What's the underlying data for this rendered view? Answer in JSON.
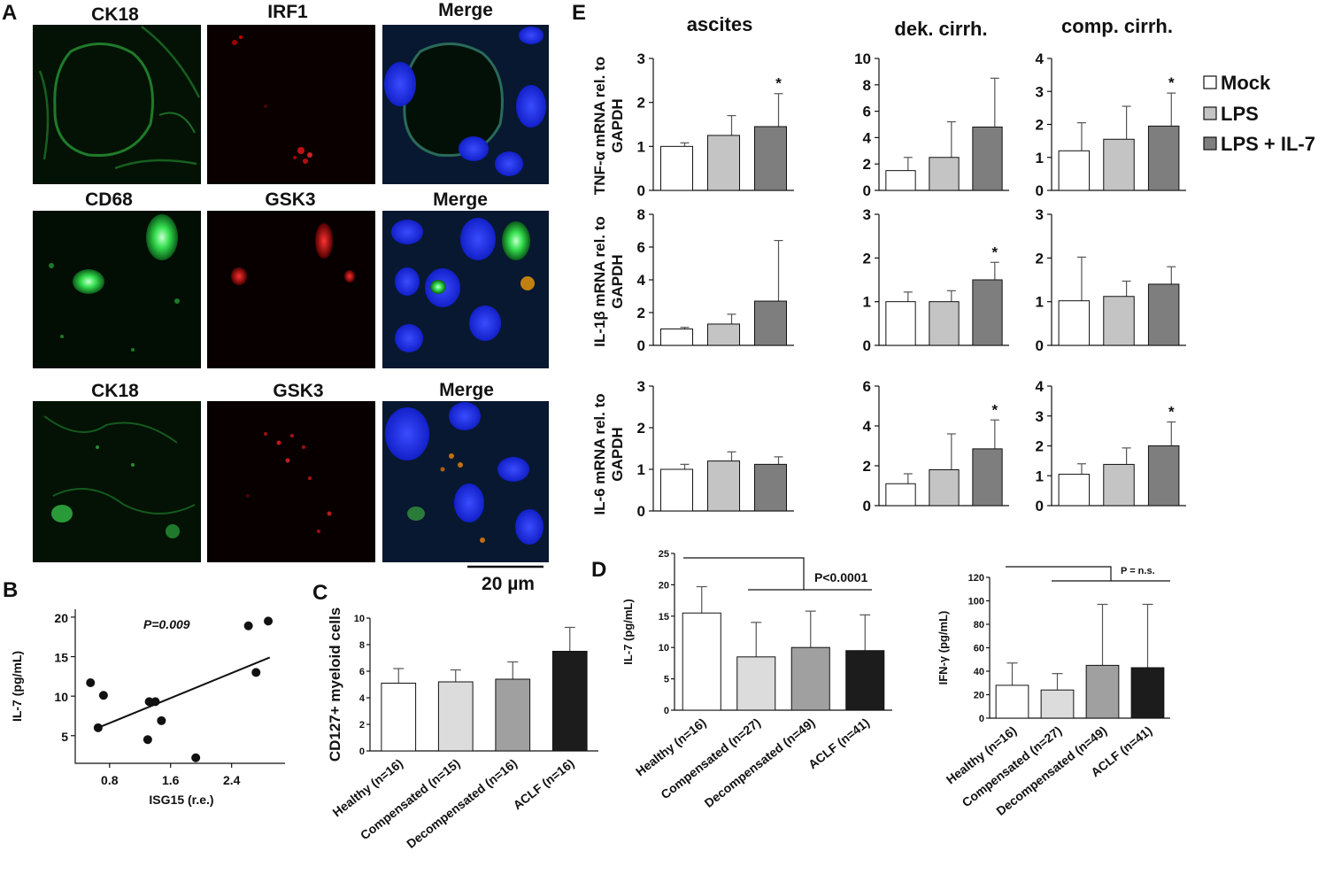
{
  "panels": {
    "A": {
      "letter": "A",
      "rows": [
        {
          "left": "CK18",
          "middle": "IRF1",
          "right": "Merge"
        },
        {
          "left": "CD68",
          "middle": "GSK3",
          "right": "Merge"
        },
        {
          "left": "CK18",
          "middle": "GSK3",
          "right": "Merge"
        }
      ],
      "scale_bar": "20 µm"
    },
    "B": {
      "letter": "B",
      "annotation": "P=0.009",
      "xlabel": "ISG15 (r.e.)",
      "ylabel": "IL-7 (pg/mL)"
    },
    "C": {
      "letter": "C",
      "ylabel": "CD127+ myeloid cells"
    },
    "D": {
      "letter": "D",
      "left_annotation": "P<0.0001",
      "right_annotation": "P = n.s.",
      "left_ylabel": "IL-7 (pg/mL)",
      "right_ylabel": "IFN-γ (pg/mL)"
    },
    "E": {
      "letter": "E",
      "columns": [
        "ascites",
        "dek. cirrh.",
        "comp. cirrh."
      ],
      "row_ylabels": [
        [
          "TNF-α mRNA rel. to",
          "GAPDH"
        ],
        [
          "IL-1β mRNA rel. to",
          "GAPDH"
        ],
        [
          "IL-6 mRNA rel. to",
          "GAPDH"
        ]
      ],
      "legend": [
        "Mock",
        "LPS",
        "LPS + IL-7"
      ]
    }
  },
  "chart_data": [
    {
      "id": "B",
      "type": "scatter",
      "xlabel": "ISG15 (r.e.)",
      "ylabel": "IL-7 (pg/mL)",
      "xticks": [
        "0.8",
        "1.6",
        "2.4"
      ],
      "yticks": [
        "5",
        "10",
        "15",
        "20"
      ],
      "xlim": [
        0.35,
        3.1
      ],
      "ylim": [
        1.5,
        21
      ],
      "points": [
        [
          0.55,
          11.7
        ],
        [
          0.65,
          6.0
        ],
        [
          0.72,
          10.1
        ],
        [
          1.3,
          4.5
        ],
        [
          1.32,
          9.3
        ],
        [
          1.4,
          9.3
        ],
        [
          1.48,
          6.9
        ],
        [
          1.93,
          2.2
        ],
        [
          2.62,
          18.9
        ],
        [
          2.72,
          13.0
        ],
        [
          2.88,
          19.5
        ]
      ],
      "trend": [
        [
          0.65,
          6.0
        ],
        [
          2.9,
          14.9
        ]
      ],
      "annotation": "P=0.009"
    },
    {
      "id": "C",
      "type": "bar",
      "ylabel": "CD127+ myeloid cells",
      "ylim": [
        0,
        10
      ],
      "yticks": [
        "0",
        "2",
        "4",
        "6",
        "8",
        "10"
      ],
      "categories": [
        "Healthy (n=16)",
        "Compensated (n=15)",
        "Decompensated (n=16)",
        "ACLF (n=16)"
      ],
      "values": [
        5.1,
        5.2,
        5.4,
        7.5
      ],
      "errors": [
        1.1,
        0.9,
        1.3,
        1.8
      ],
      "colors": [
        "#ffffff",
        "#dcdcdc",
        "#a0a0a0",
        "#1c1c1c"
      ]
    },
    {
      "id": "D-left",
      "type": "bar",
      "ylabel": "IL-7 (pg/mL)",
      "ylim": [
        0,
        25
      ],
      "yticks": [
        "0",
        "5",
        "10",
        "15",
        "20",
        "25"
      ],
      "categories": [
        "Healthy (n=16)",
        "Compensated (n=27)",
        "Decompensated (n=49)",
        "ACLF (n=41)"
      ],
      "values": [
        15.5,
        8.5,
        10.0,
        9.5
      ],
      "errors": [
        4.2,
        5.5,
        5.8,
        5.7
      ],
      "colors": [
        "#ffffff",
        "#dcdcdc",
        "#a0a0a0",
        "#1c1c1c"
      ],
      "annotation": "P<0.0001"
    },
    {
      "id": "D-right",
      "type": "bar",
      "ylabel": "IFN-γ (pg/mL)",
      "ylim": [
        0,
        120
      ],
      "yticks": [
        "0",
        "20",
        "40",
        "60",
        "80",
        "100",
        "120"
      ],
      "categories": [
        "Healthy (n=16)",
        "Compensated (n=27)",
        "Decompensated (n=49)",
        "ACLF (n=41)"
      ],
      "values": [
        28,
        24,
        45,
        43
      ],
      "errors": [
        19,
        14,
        52,
        54
      ],
      "colors": [
        "#ffffff",
        "#dcdcdc",
        "#a0a0a0",
        "#1c1c1c"
      ],
      "annotation": "P = n.s."
    },
    {
      "id": "E",
      "type": "bar",
      "series_names": [
        "Mock",
        "LPS",
        "LPS + IL-7"
      ],
      "series_colors": [
        "#ffffff",
        "#c4c4c4",
        "#7e7e7e"
      ],
      "panels": [
        {
          "row": 0,
          "col": 0,
          "ylim": [
            0,
            3
          ],
          "yticks": [
            "0",
            "1",
            "2",
            "3"
          ],
          "values": [
            1.0,
            1.25,
            1.45
          ],
          "errors": [
            0.08,
            0.45,
            0.75
          ],
          "star": [
            false,
            false,
            true
          ]
        },
        {
          "row": 0,
          "col": 1,
          "ylim": [
            0,
            10
          ],
          "yticks": [
            "0",
            "2",
            "4",
            "6",
            "8",
            "10"
          ],
          "values": [
            1.5,
            2.5,
            4.8
          ],
          "errors": [
            1.0,
            2.7,
            3.7
          ],
          "star": [
            false,
            false,
            false
          ]
        },
        {
          "row": 0,
          "col": 2,
          "ylim": [
            0,
            4
          ],
          "yticks": [
            "0",
            "1",
            "2",
            "3",
            "4"
          ],
          "values": [
            1.2,
            1.55,
            1.95
          ],
          "errors": [
            0.85,
            1.0,
            1.0
          ],
          "star": [
            false,
            false,
            true
          ]
        },
        {
          "row": 1,
          "col": 0,
          "ylim": [
            0,
            8
          ],
          "yticks": [
            "0",
            "2",
            "4",
            "6",
            "8"
          ],
          "values": [
            1.0,
            1.3,
            2.7
          ],
          "errors": [
            0.1,
            0.6,
            3.7
          ],
          "star": [
            false,
            false,
            false
          ]
        },
        {
          "row": 1,
          "col": 1,
          "ylim": [
            0,
            3
          ],
          "yticks": [
            "0",
            "1",
            "2",
            "3"
          ],
          "values": [
            1.0,
            1.0,
            1.5
          ],
          "errors": [
            0.22,
            0.25,
            0.4
          ],
          "star": [
            false,
            false,
            true
          ]
        },
        {
          "row": 1,
          "col": 2,
          "ylim": [
            0,
            3
          ],
          "yticks": [
            "0",
            "1",
            "2",
            "3"
          ],
          "values": [
            1.02,
            1.12,
            1.4
          ],
          "errors": [
            1.0,
            0.35,
            0.4
          ],
          "star": [
            false,
            false,
            false
          ]
        },
        {
          "row": 2,
          "col": 0,
          "ylim": [
            0,
            3
          ],
          "yticks": [
            "0",
            "1",
            "2",
            "3"
          ],
          "values": [
            1.0,
            1.2,
            1.12
          ],
          "errors": [
            0.12,
            0.22,
            0.18
          ],
          "star": [
            false,
            false,
            false
          ]
        },
        {
          "row": 2,
          "col": 1,
          "ylim": [
            0,
            6
          ],
          "yticks": [
            "0",
            "2",
            "4",
            "6"
          ],
          "values": [
            1.1,
            1.8,
            2.85
          ],
          "errors": [
            0.5,
            1.8,
            1.45
          ],
          "star": [
            false,
            false,
            true
          ]
        },
        {
          "row": 2,
          "col": 2,
          "ylim": [
            0,
            4
          ],
          "yticks": [
            "0",
            "1",
            "2",
            "3",
            "4"
          ],
          "values": [
            1.05,
            1.38,
            2.0
          ],
          "errors": [
            0.35,
            0.55,
            0.8
          ],
          "star": [
            false,
            false,
            true
          ]
        }
      ]
    }
  ]
}
